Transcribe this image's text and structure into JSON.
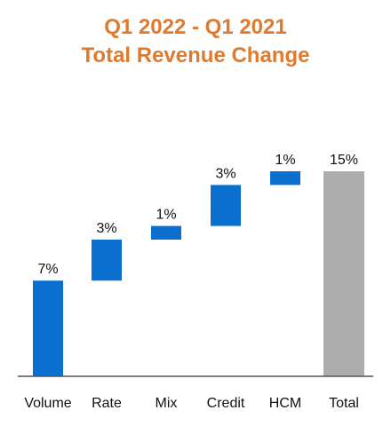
{
  "chart_data": {
    "type": "bar",
    "subtype": "waterfall",
    "title_lines": [
      "Q1 2022 - Q1 2021",
      "Total Revenue Change"
    ],
    "categories": [
      "Volume",
      "Rate",
      "Mix",
      "Credit",
      "HCM",
      "Total"
    ],
    "values": [
      7,
      3,
      1,
      3,
      1,
      15
    ],
    "value_labels": [
      "7%",
      "3%",
      "1%",
      "3%",
      "1%",
      "15%"
    ],
    "is_total": [
      false,
      false,
      false,
      false,
      false,
      true
    ],
    "ylim": [
      0,
      15
    ],
    "unit": "%",
    "grid": false,
    "legend": "none"
  },
  "colors": {
    "title": "#e07a2e",
    "increase": "#0a6fce",
    "total": "#adadad",
    "axis": "#555555"
  }
}
